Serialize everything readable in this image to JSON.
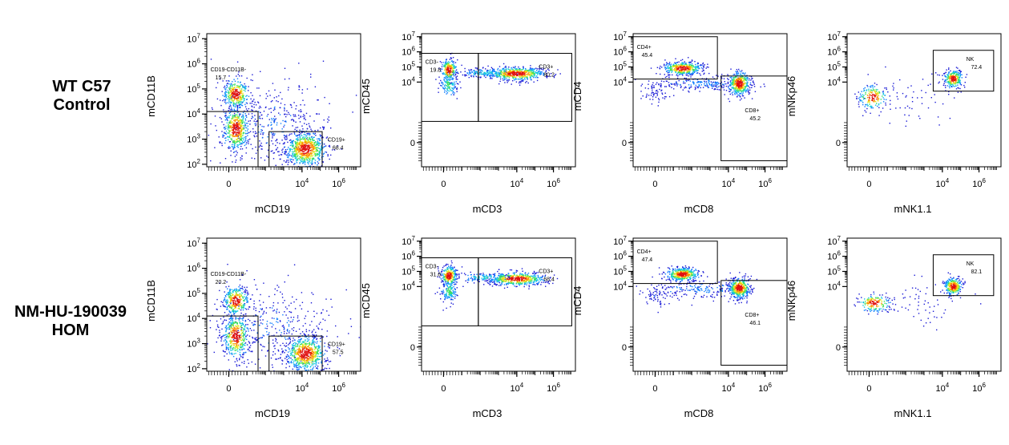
{
  "rows": [
    {
      "label_lines": [
        "WT C57",
        "Control"
      ]
    },
    {
      "label_lines": [
        "NM-HU-190039",
        "HOM"
      ]
    }
  ],
  "palette": [
    "#1a1ad6",
    "#0f7fff",
    "#14c8e0",
    "#3de05a",
    "#e6e619",
    "#ff8a00",
    "#e01010"
  ],
  "chart_data": [
    {
      "type": "scatter",
      "subtype": "flow-cytometry-density-plot",
      "row": 0,
      "col": 0,
      "xlabel": "mCD19",
      "ylabel": "mCD11B",
      "xticks": [
        "0",
        "10^4",
        "10^6"
      ],
      "yticks": [
        "10^2",
        "10^3",
        "10^4",
        "10^5",
        "10^6",
        "10^7"
      ],
      "xlim": [
        -1.2,
        7.2
      ],
      "ylim": [
        1.9,
        7.2
      ],
      "populations": [
        {
          "x": 0.4,
          "y": 4.8,
          "sx": 0.35,
          "sy": 0.3,
          "n": 320,
          "peak": 1.0
        },
        {
          "x": 0.4,
          "y": 3.4,
          "sx": 0.35,
          "sy": 0.45,
          "n": 450,
          "peak": 1.0
        },
        {
          "x": 4.2,
          "y": 2.6,
          "sx": 0.55,
          "sy": 0.35,
          "n": 700,
          "peak": 1.0
        },
        {
          "x": 2.3,
          "y": 3.6,
          "sx": 1.6,
          "sy": 0.9,
          "n": 420,
          "peak": 0.15
        }
      ],
      "gates": [
        {
          "name": "CD19-CD11B-",
          "value": "15.7",
          "x0": -1.2,
          "x1": 1.6,
          "y0": 1.9,
          "y1": 4.1,
          "label_at": [
            -1.0,
            5.7
          ]
        },
        {
          "name": "CD19+",
          "value": "68.4",
          "x0": 2.2,
          "x1": 5.1,
          "y0": 1.9,
          "y1": 3.3,
          "label_at": [
            5.4,
            2.9
          ]
        }
      ]
    },
    {
      "type": "scatter",
      "subtype": "flow-cytometry-density-plot",
      "row": 0,
      "col": 1,
      "xlabel": "mCD3",
      "ylabel": "mCD45",
      "xticks": [
        "0",
        "10^4",
        "10^6"
      ],
      "yticks": [
        "0",
        "10^4",
        "10^5",
        "10^6",
        "10^7"
      ],
      "xlim": [
        -1.2,
        7.2
      ],
      "ylim": [
        -1.6,
        7.2
      ],
      "populations": [
        {
          "x": 0.3,
          "y": 4.8,
          "sx": 0.22,
          "sy": 0.35,
          "n": 220,
          "peak": 1.0
        },
        {
          "x": 0.3,
          "y": 3.8,
          "sx": 0.25,
          "sy": 0.4,
          "n": 120,
          "peak": 0.5
        },
        {
          "x": 4.0,
          "y": 4.55,
          "sx": 0.8,
          "sy": 0.22,
          "n": 550,
          "peak": 1.0
        },
        {
          "x": 2.2,
          "y": 4.6,
          "sx": 0.8,
          "sy": 0.15,
          "n": 140,
          "peak": 0.4
        }
      ],
      "gates": [
        {
          "name": "CD3-",
          "value": "19.8",
          "x0": -1.2,
          "x1": 1.9,
          "y0": 1.4,
          "y1": 5.9,
          "label_at": [
            -1.0,
            5.2
          ]
        },
        {
          "name": "CD3+",
          "value": "80.2",
          "x0": 1.9,
          "x1": 7.0,
          "y0": 1.4,
          "y1": 5.9,
          "label_at": [
            5.2,
            4.9
          ]
        }
      ]
    },
    {
      "type": "scatter",
      "subtype": "flow-cytometry-density-plot",
      "row": 0,
      "col": 2,
      "xlabel": "mCD8",
      "ylabel": "mCD4",
      "xticks": [
        "0",
        "10^4",
        "10^6"
      ],
      "yticks": [
        "0",
        "10^4",
        "10^5",
        "10^6",
        "10^7"
      ],
      "xlim": [
        -1.2,
        7.2
      ],
      "ylim": [
        -1.6,
        7.2
      ],
      "populations": [
        {
          "x": 1.5,
          "y": 4.9,
          "sx": 0.55,
          "sy": 0.22,
          "n": 420,
          "peak": 1.0
        },
        {
          "x": 4.6,
          "y": 3.9,
          "sx": 0.3,
          "sy": 0.4,
          "n": 420,
          "peak": 1.0
        },
        {
          "x": 2.5,
          "y": 3.9,
          "sx": 1.5,
          "sy": 0.25,
          "n": 220,
          "peak": 0.2
        },
        {
          "x": 0.0,
          "y": 3.3,
          "sx": 0.4,
          "sy": 0.35,
          "n": 60,
          "peak": 0.1
        }
      ],
      "gates": [
        {
          "name": "CD4+",
          "value": "45.4",
          "x0": -1.2,
          "x1": 3.4,
          "y0": 4.2,
          "y1": 7.0,
          "label_at": [
            -1.0,
            6.2
          ]
        },
        {
          "name": "CD8+",
          "value": "45.2",
          "x0": 3.6,
          "x1": 7.2,
          "y0": -1.2,
          "y1": 4.4,
          "label_at": [
            4.9,
            2.0
          ]
        }
      ]
    },
    {
      "type": "scatter",
      "subtype": "flow-cytometry-density-plot",
      "row": 0,
      "col": 3,
      "xlabel": "mNK1.1",
      "ylabel": "mNKp46",
      "xticks": [
        "0",
        "10^4",
        "10^6"
      ],
      "yticks": [
        "0",
        "10^4",
        "10^5",
        "10^6",
        "10^7"
      ],
      "xlim": [
        -1.2,
        7.2
      ],
      "ylim": [
        -1.6,
        7.2
      ],
      "populations": [
        {
          "x": 0.2,
          "y": 3.0,
          "sx": 0.4,
          "sy": 0.4,
          "n": 180,
          "peak": 1.0
        },
        {
          "x": 4.6,
          "y": 4.2,
          "sx": 0.25,
          "sy": 0.3,
          "n": 260,
          "peak": 1.0
        },
        {
          "x": 2.5,
          "y": 3.0,
          "sx": 1.3,
          "sy": 0.8,
          "n": 60,
          "peak": 0.05
        }
      ],
      "gates": [
        {
          "name": "NK",
          "value": "72.4",
          "x0": 3.5,
          "x1": 6.8,
          "y0": 3.4,
          "y1": 6.1,
          "label_at": [
            5.3,
            5.4
          ]
        }
      ]
    },
    {
      "type": "scatter",
      "subtype": "flow-cytometry-density-plot",
      "row": 1,
      "col": 0,
      "xlabel": "mCD19",
      "ylabel": "mCD11B",
      "xticks": [
        "0",
        "10^4",
        "10^6"
      ],
      "yticks": [
        "10^2",
        "10^3",
        "10^4",
        "10^5",
        "10^6",
        "10^7"
      ],
      "xlim": [
        -1.2,
        7.2
      ],
      "ylim": [
        1.9,
        7.2
      ],
      "populations": [
        {
          "x": 0.4,
          "y": 4.7,
          "sx": 0.35,
          "sy": 0.3,
          "n": 300,
          "peak": 1.0
        },
        {
          "x": 0.4,
          "y": 3.3,
          "sx": 0.35,
          "sy": 0.45,
          "n": 420,
          "peak": 1.0
        },
        {
          "x": 4.2,
          "y": 2.6,
          "sx": 0.55,
          "sy": 0.35,
          "n": 650,
          "peak": 1.0
        },
        {
          "x": 2.3,
          "y": 3.6,
          "sx": 1.6,
          "sy": 0.9,
          "n": 420,
          "peak": 0.15
        }
      ],
      "gates": [
        {
          "name": "CD19-CD11B-",
          "value": "20.2",
          "x0": -1.2,
          "x1": 1.6,
          "y0": 1.9,
          "y1": 4.1,
          "label_at": [
            -1.0,
            5.7
          ]
        },
        {
          "name": "CD19+",
          "value": "57.5",
          "x0": 2.2,
          "x1": 5.1,
          "y0": 1.9,
          "y1": 3.3,
          "label_at": [
            5.4,
            2.9
          ]
        }
      ]
    },
    {
      "type": "scatter",
      "subtype": "flow-cytometry-density-plot",
      "row": 1,
      "col": 1,
      "xlabel": "mCD3",
      "ylabel": "mCD45",
      "xticks": [
        "0",
        "10^4",
        "10^6"
      ],
      "yticks": [
        "0",
        "10^4",
        "10^5",
        "10^6",
        "10^7"
      ],
      "xlim": [
        -1.2,
        7.2
      ],
      "ylim": [
        -1.6,
        7.2
      ],
      "populations": [
        {
          "x": 0.3,
          "y": 4.7,
          "sx": 0.22,
          "sy": 0.35,
          "n": 240,
          "peak": 1.0
        },
        {
          "x": 0.3,
          "y": 3.7,
          "sx": 0.25,
          "sy": 0.4,
          "n": 150,
          "peak": 0.5
        },
        {
          "x": 4.0,
          "y": 4.5,
          "sx": 0.8,
          "sy": 0.22,
          "n": 480,
          "peak": 1.0
        },
        {
          "x": 2.2,
          "y": 4.6,
          "sx": 0.8,
          "sy": 0.15,
          "n": 140,
          "peak": 0.4
        }
      ],
      "gates": [
        {
          "name": "CD3-",
          "value": "31.6",
          "x0": -1.2,
          "x1": 1.9,
          "y0": 1.4,
          "y1": 5.9,
          "label_at": [
            -1.0,
            5.2
          ]
        },
        {
          "name": "CD3+",
          "value": "68.4",
          "x0": 1.9,
          "x1": 7.0,
          "y0": 1.4,
          "y1": 5.9,
          "label_at": [
            5.2,
            4.9
          ]
        }
      ]
    },
    {
      "type": "scatter",
      "subtype": "flow-cytometry-density-plot",
      "row": 1,
      "col": 2,
      "xlabel": "mCD8",
      "ylabel": "mCD4",
      "xticks": [
        "0",
        "10^4",
        "10^6"
      ],
      "yticks": [
        "0",
        "10^4",
        "10^5",
        "10^6",
        "10^7"
      ],
      "xlim": [
        -1.2,
        7.2
      ],
      "ylim": [
        -1.6,
        7.2
      ],
      "populations": [
        {
          "x": 1.5,
          "y": 4.8,
          "sx": 0.45,
          "sy": 0.22,
          "n": 400,
          "peak": 1.0
        },
        {
          "x": 4.6,
          "y": 3.9,
          "sx": 0.3,
          "sy": 0.35,
          "n": 400,
          "peak": 1.0
        },
        {
          "x": 2.5,
          "y": 3.8,
          "sx": 1.5,
          "sy": 0.3,
          "n": 200,
          "peak": 0.2
        },
        {
          "x": 0.0,
          "y": 3.3,
          "sx": 0.4,
          "sy": 0.35,
          "n": 60,
          "peak": 0.1
        }
      ],
      "gates": [
        {
          "name": "CD4+",
          "value": "47.4",
          "x0": -1.2,
          "x1": 3.4,
          "y0": 4.2,
          "y1": 7.0,
          "label_at": [
            -1.0,
            6.2
          ]
        },
        {
          "name": "CD8+",
          "value": "46.1",
          "x0": 3.6,
          "x1": 7.2,
          "y0": -1.2,
          "y1": 4.4,
          "label_at": [
            4.9,
            2.0
          ]
        }
      ]
    },
    {
      "type": "scatter",
      "subtype": "flow-cytometry-density-plot",
      "row": 1,
      "col": 3,
      "xlabel": "mNK1.1",
      "ylabel": "mNKp46",
      "xticks": [
        "0",
        "10^4",
        "10^6"
      ],
      "yticks": [
        "0",
        "10^4",
        "10^5",
        "10^6",
        "10^7"
      ],
      "xlim": [
        -1.2,
        7.2
      ],
      "ylim": [
        -1.6,
        7.2
      ],
      "populations": [
        {
          "x": 0.3,
          "y": 2.9,
          "sx": 0.45,
          "sy": 0.3,
          "n": 170,
          "peak": 1.0
        },
        {
          "x": 4.6,
          "y": 4.0,
          "sx": 0.25,
          "sy": 0.3,
          "n": 280,
          "peak": 1.0
        },
        {
          "x": 2.5,
          "y": 3.0,
          "sx": 1.3,
          "sy": 0.8,
          "n": 60,
          "peak": 0.05
        }
      ],
      "gates": [
        {
          "name": "NK",
          "value": "82.1",
          "x0": 3.5,
          "x1": 6.8,
          "y0": 3.4,
          "y1": 6.1,
          "label_at": [
            5.3,
            5.4
          ]
        }
      ]
    }
  ]
}
